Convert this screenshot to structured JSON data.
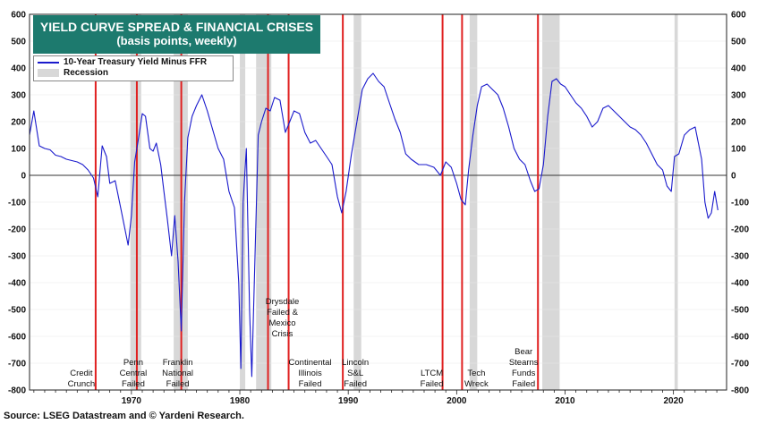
{
  "title": "YIELD CURVE SPREAD & FINANCIAL CRISES",
  "subtitle": "(basis points, weekly)",
  "source": "Source: LSEG Datastream and © Yardeni Research.",
  "legend": {
    "series": "10-Year Treasury Yield Minus FFR",
    "recession": "Recession"
  },
  "colors": {
    "series": "#1a1acc",
    "recession": "#d8d8d8",
    "crisis_line": "#e02020",
    "title_bg": "#1d7a6e"
  },
  "chart_data": {
    "type": "line",
    "title": "YIELD CURVE SPREAD & FINANCIAL CRISES",
    "subtitle": "(basis points, weekly)",
    "xlim": [
      1960.6,
      2024.9
    ],
    "ylim": [
      -800,
      600
    ],
    "y_ticks": [
      -800,
      -700,
      -600,
      -500,
      -400,
      -300,
      -200,
      -100,
      0,
      100,
      200,
      300,
      400,
      500,
      600
    ],
    "x_ticks": [
      1970,
      1980,
      1990,
      2000,
      2010,
      2020
    ],
    "x_tick_labels": [
      "1970",
      "1980",
      "1990",
      "2000",
      "2010",
      "2020"
    ],
    "y_axis_both_sides": true,
    "zero_line": true,
    "recessions": [
      [
        1969.9,
        1970.9
      ],
      [
        1973.9,
        1975.2
      ],
      [
        1980.0,
        1980.5
      ],
      [
        1981.5,
        1982.9
      ],
      [
        1990.5,
        1991.2
      ],
      [
        2001.2,
        2001.9
      ],
      [
        2007.9,
        2009.5
      ],
      [
        2020.1,
        2020.4
      ]
    ],
    "series": [
      {
        "name": "10-Year Treasury Yield Minus FFR",
        "x": [
          1960.6,
          1961.0,
          1961.5,
          1962.0,
          1962.5,
          1963.0,
          1963.5,
          1964.0,
          1964.5,
          1965.0,
          1965.5,
          1966.0,
          1966.5,
          1966.9,
          1967.3,
          1967.7,
          1968.0,
          1968.5,
          1969.0,
          1969.3,
          1969.7,
          1970.0,
          1970.3,
          1970.7,
          1971.0,
          1971.3,
          1971.7,
          1972.0,
          1972.3,
          1972.7,
          1973.0,
          1973.3,
          1973.7,
          1974.0,
          1974.3,
          1974.6,
          1974.9,
          1975.2,
          1975.6,
          1976.0,
          1976.5,
          1977.0,
          1977.5,
          1978.0,
          1978.5,
          1979.0,
          1979.5,
          1979.9,
          1980.1,
          1980.3,
          1980.6,
          1980.9,
          1981.1,
          1981.4,
          1981.7,
          1982.0,
          1982.4,
          1982.8,
          1983.2,
          1983.7,
          1984.2,
          1984.6,
          1985.0,
          1985.5,
          1986.0,
          1986.5,
          1987.0,
          1987.5,
          1988.0,
          1988.5,
          1989.0,
          1989.4,
          1989.8,
          1990.3,
          1990.8,
          1991.3,
          1991.8,
          1992.3,
          1992.8,
          1993.3,
          1993.8,
          1994.3,
          1994.8,
          1995.3,
          1995.8,
          1996.5,
          1997.2,
          1997.9,
          1998.5,
          1999.0,
          1999.5,
          2000.0,
          2000.4,
          2000.8,
          2001.1,
          2001.5,
          2001.9,
          2002.3,
          2002.8,
          2003.3,
          2003.8,
          2004.3,
          2004.8,
          2005.3,
          2005.8,
          2006.3,
          2006.8,
          2007.2,
          2007.6,
          2008.0,
          2008.4,
          2008.8,
          2009.2,
          2009.6,
          2010.0,
          2010.5,
          2011.0,
          2011.5,
          2012.0,
          2012.5,
          2013.0,
          2013.5,
          2014.0,
          2014.5,
          2015.0,
          2015.5,
          2016.0,
          2016.5,
          2017.0,
          2017.5,
          2018.0,
          2018.5,
          2019.0,
          2019.4,
          2019.8,
          2020.1,
          2020.5,
          2021.0,
          2021.5,
          2022.0,
          2022.3,
          2022.6,
          2022.9,
          2023.2,
          2023.5,
          2023.8,
          2024.1
        ],
        "y": [
          150,
          240,
          110,
          100,
          95,
          75,
          70,
          60,
          55,
          50,
          40,
          20,
          -10,
          -80,
          110,
          70,
          -30,
          -20,
          -120,
          -180,
          -260,
          -150,
          50,
          150,
          230,
          220,
          100,
          90,
          120,
          40,
          -60,
          -160,
          -300,
          -150,
          -320,
          -580,
          -100,
          140,
          220,
          260,
          300,
          240,
          170,
          100,
          60,
          -60,
          -120,
          -400,
          -720,
          -100,
          100,
          -500,
          -750,
          -300,
          150,
          200,
          250,
          240,
          290,
          280,
          160,
          200,
          240,
          230,
          160,
          120,
          130,
          100,
          70,
          40,
          -80,
          -140,
          -60,
          80,
          200,
          320,
          360,
          380,
          350,
          330,
          270,
          210,
          160,
          80,
          60,
          40,
          40,
          30,
          0,
          50,
          30,
          -30,
          -90,
          -110,
          20,
          150,
          260,
          330,
          340,
          320,
          300,
          250,
          180,
          100,
          60,
          40,
          -20,
          -60,
          -50,
          40,
          220,
          350,
          360,
          340,
          330,
          300,
          270,
          250,
          220,
          180,
          200,
          250,
          260,
          240,
          220,
          200,
          180,
          170,
          150,
          120,
          80,
          40,
          20,
          -40,
          -60,
          70,
          80,
          150,
          170,
          180,
          120,
          60,
          -100,
          -160,
          -140,
          -60,
          -130
        ]
      }
    ],
    "crises": [
      {
        "x": 1966.7,
        "label": [
          "Credit",
          "Crunch"
        ]
      },
      {
        "x": 1970.5,
        "label": [
          "Penn",
          "Central",
          "Failed"
        ]
      },
      {
        "x": 1974.6,
        "label": [
          "Franklin",
          "National",
          "Failed"
        ]
      },
      {
        "x": 1982.6,
        "label": [
          "Drysdale",
          "Failed &",
          "Mexico",
          "Crisis"
        ]
      },
      {
        "x": 1984.5,
        "label": [
          "Continental",
          "Illinois",
          "Failed"
        ]
      },
      {
        "x": 1989.5,
        "label": [
          "Lincoln",
          "S&L",
          "Failed"
        ]
      },
      {
        "x": 1998.7,
        "label": [
          "LTCM",
          "Failed"
        ]
      },
      {
        "x": 2000.5,
        "label": [
          "Tech",
          "Wreck"
        ]
      },
      {
        "x": 2007.5,
        "label": [
          "Bear",
          "Stearns",
          "Funds",
          "Failed"
        ]
      }
    ]
  }
}
